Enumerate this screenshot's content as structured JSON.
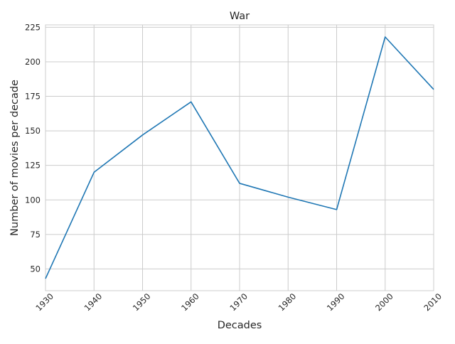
{
  "chart_data": {
    "type": "line",
    "title": "War",
    "xlabel": "Decades",
    "ylabel": "Number of movies per decade",
    "x": [
      1930,
      1940,
      1950,
      1960,
      1970,
      1980,
      1990,
      2000,
      2010
    ],
    "series": [
      {
        "values": [
          43,
          120,
          147,
          171,
          112,
          102,
          93,
          218,
          180
        ],
        "color": "#1f77b4"
      }
    ],
    "xlim": [
      1930,
      2010
    ],
    "ylim": [
      34.25,
      226.75
    ],
    "yticks": [
      50,
      75,
      100,
      125,
      150,
      175,
      200,
      225
    ],
    "xticks": [
      1930,
      1940,
      1950,
      1960,
      1970,
      1980,
      1990,
      2000,
      2010
    ],
    "xtick_rotation": 45,
    "grid": true,
    "legend": "none"
  },
  "style": {
    "grid_color": "#cccccc",
    "spine_color": "#cccccc",
    "text_color": "#262626"
  }
}
